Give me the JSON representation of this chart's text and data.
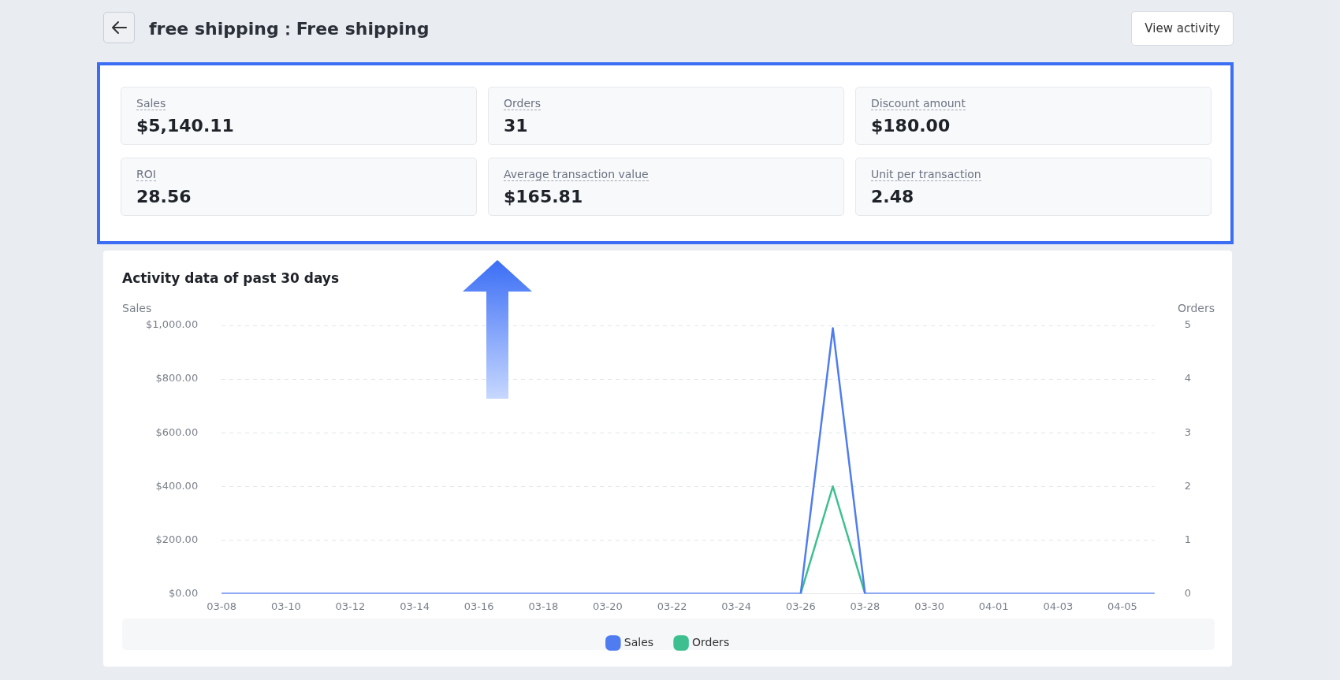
{
  "chart_data": [
    {
      "type": "other",
      "title": "free shipping：Free shipping",
      "annotations": [
        "View activity"
      ],
      "categories": [
        "Sales",
        "Orders",
        "Discount amount",
        "ROI",
        "Average transaction value",
        "Unit per transaction"
      ],
      "value_labels": [
        "$5,140.11",
        "31",
        "$180.00",
        "28.56",
        "$165.81",
        "2.48"
      ]
    },
    {
      "type": "line",
      "title": "Activity data of past 30 days",
      "ylabel": "Sales",
      "y2label": "Orders",
      "categories": [
        "03-08",
        null,
        "03-10",
        null,
        "03-12",
        null,
        "03-14",
        null,
        "03-16",
        null,
        "03-18",
        null,
        "03-20",
        null,
        "03-22",
        null,
        "03-24",
        null,
        "03-26",
        null,
        "03-28",
        null,
        "03-30",
        null,
        "04-01",
        null,
        "04-03",
        null,
        "04-05",
        null
      ],
      "series": [
        {
          "name": "Sales",
          "color": "#4f7cf0",
          "values": [
            0,
            0,
            0,
            0,
            0,
            0,
            0,
            0,
            0,
            0,
            0,
            0,
            0,
            0,
            0,
            0,
            0,
            0,
            0,
            990,
            0,
            0,
            0,
            0,
            0,
            0,
            0,
            0,
            0,
            0
          ]
        },
        {
          "name": "Orders",
          "color": "#3dbf8f",
          "axis": "y2",
          "values": [
            null,
            null,
            null,
            null,
            null,
            null,
            null,
            null,
            null,
            null,
            null,
            null,
            null,
            null,
            null,
            null,
            null,
            null,
            0,
            2,
            0,
            null,
            null,
            null,
            null,
            null,
            null,
            null,
            null,
            null
          ]
        }
      ],
      "ylim": [
        0,
        1000
      ],
      "yticks": [
        {
          "value": 0,
          "label": "$0.00"
        },
        {
          "value": 200,
          "label": "$200.00"
        },
        {
          "value": 400,
          "label": "$400.00"
        },
        {
          "value": 600,
          "label": "$600.00"
        },
        {
          "value": 800,
          "label": "$800.00"
        },
        {
          "value": 1000,
          "label": "$1,000.00"
        }
      ],
      "y2lim": [
        0,
        5
      ],
      "y2ticks": [
        0,
        1,
        2,
        3,
        4,
        5
      ],
      "grid": "y",
      "legend": "bottom",
      "marker": "none"
    }
  ]
}
